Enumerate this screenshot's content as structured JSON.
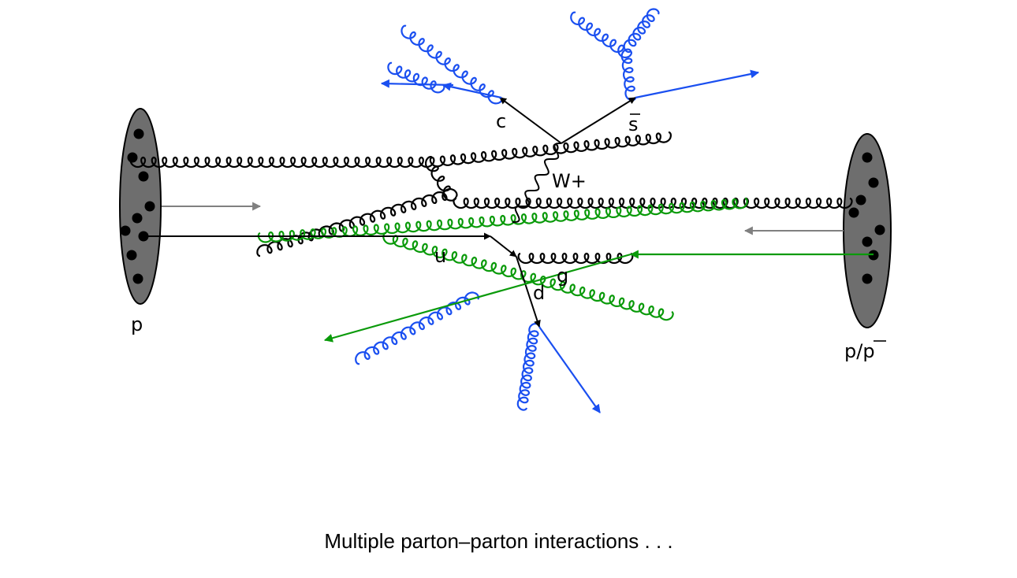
{
  "labels": {
    "proton_left": "p",
    "proton_right": "p/",
    "proton_right_bar": "p",
    "charm": "c",
    "strange_bar": "s",
    "w_boson": "W+",
    "up": "u",
    "gluon": "g",
    "down": "d"
  },
  "caption": "Multiple parton–parton interactions . . .",
  "colors": {
    "primary": "#000000",
    "secondary": "#0a9a0a",
    "radiation": "#1a4ff0",
    "beam_arrow": "#808080",
    "hadron_fill": "#6e6e6e"
  }
}
